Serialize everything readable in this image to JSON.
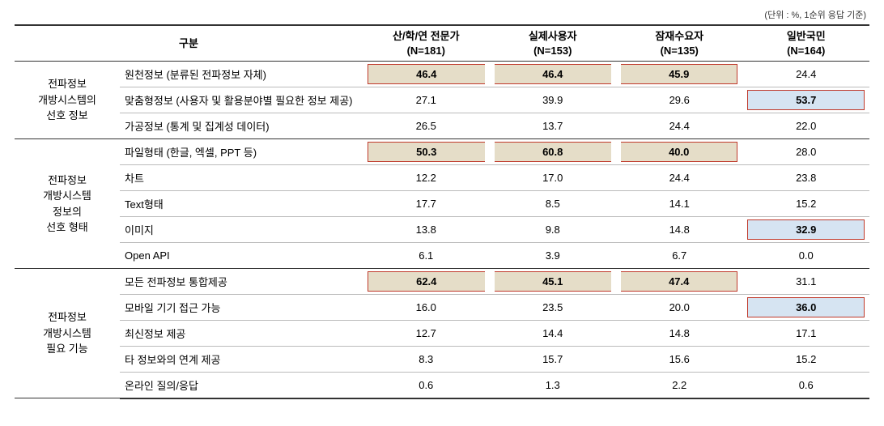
{
  "unit_note": "(단위 : %, 1순위 응답 기준)",
  "headers": {
    "category": "구분",
    "col1": {
      "line1": "산/학/연 전문가",
      "line2": "(N=181)"
    },
    "col2": {
      "line1": "실제사용자",
      "line2": "(N=153)"
    },
    "col3": {
      "line1": "잠재수요자",
      "line2": "(N=135)"
    },
    "col4": {
      "line1": "일반국민",
      "line2": "(N=164)"
    }
  },
  "groups": [
    {
      "label": "전파정보\n개방시스템의\n선호 정보",
      "rows": [
        {
          "label": "원천정보 (분류된 전파정보 자체)",
          "vals": [
            "46.4",
            "46.4",
            "45.9",
            "24.4"
          ],
          "hl": [
            "tan-left",
            "tan",
            "tan-right",
            ""
          ]
        },
        {
          "label": "맞춤형정보 (사용자 및 활용분야별 필요한 정보 제공)",
          "vals": [
            "27.1",
            "39.9",
            "29.6",
            "53.7"
          ],
          "hl": [
            "",
            "",
            "",
            "blue"
          ]
        },
        {
          "label": "가공정보 (통계 및 집계성 데이터)",
          "vals": [
            "26.5",
            "13.7",
            "24.4",
            "22.0"
          ],
          "hl": [
            "",
            "",
            "",
            ""
          ]
        }
      ]
    },
    {
      "label": "전파정보\n개방시스템\n정보의\n선호 형태",
      "rows": [
        {
          "label": "파일형태 (한글, 엑셀, PPT 등)",
          "vals": [
            "50.3",
            "60.8",
            "40.0",
            "28.0"
          ],
          "hl": [
            "tan-left",
            "tan",
            "tan-right",
            ""
          ]
        },
        {
          "label": "차트",
          "vals": [
            "12.2",
            "17.0",
            "24.4",
            "23.8"
          ],
          "hl": [
            "",
            "",
            "",
            ""
          ]
        },
        {
          "label": "Text형태",
          "vals": [
            "17.7",
            "8.5",
            "14.1",
            "15.2"
          ],
          "hl": [
            "",
            "",
            "",
            ""
          ]
        },
        {
          "label": "이미지",
          "vals": [
            "13.8",
            "9.8",
            "14.8",
            "32.9"
          ],
          "hl": [
            "",
            "",
            "",
            "blue"
          ]
        },
        {
          "label": "Open API",
          "vals": [
            "6.1",
            "3.9",
            "6.7",
            "0.0"
          ],
          "hl": [
            "",
            "",
            "",
            ""
          ]
        }
      ]
    },
    {
      "label": "전파정보\n개방시스템\n필요 기능",
      "rows": [
        {
          "label": "모든 전파정보 통합제공",
          "vals": [
            "62.4",
            "45.1",
            "47.4",
            "31.1"
          ],
          "hl": [
            "tan-left",
            "tan",
            "tan-right",
            ""
          ]
        },
        {
          "label": "모바일 기기 접근 가능",
          "vals": [
            "16.0",
            "23.5",
            "20.0",
            "36.0"
          ],
          "hl": [
            "",
            "",
            "",
            "blue"
          ]
        },
        {
          "label": "최신정보 제공",
          "vals": [
            "12.7",
            "14.4",
            "14.8",
            "17.1"
          ],
          "hl": [
            "",
            "",
            "",
            ""
          ]
        },
        {
          "label": "타 정보와의 연계 제공",
          "vals": [
            "8.3",
            "15.7",
            "15.6",
            "15.2"
          ],
          "hl": [
            "",
            "",
            "",
            ""
          ]
        },
        {
          "label": "온라인 질의/응답",
          "vals": [
            "0.6",
            "1.3",
            "2.2",
            "0.6"
          ],
          "hl": [
            "",
            "",
            "",
            ""
          ]
        }
      ]
    }
  ],
  "style": {
    "tan_bg": "#e5ddc8",
    "blue_bg": "#d6e4f2",
    "hl_border": "#c0392b",
    "border": "#333333",
    "row_border": "#bbbbbb",
    "font_size_body": 13,
    "font_size_note": 11
  }
}
